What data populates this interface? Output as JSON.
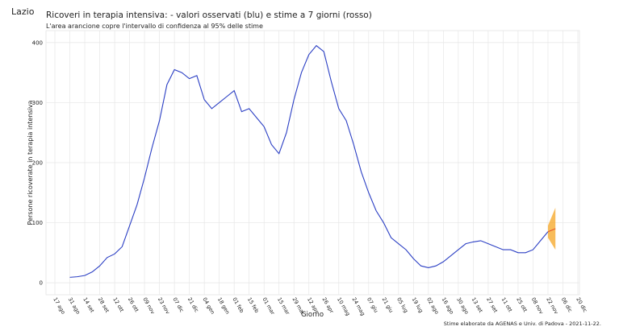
{
  "page_title": "Lazio",
  "chart_data": {
    "type": "line",
    "title": "Ricoveri in terapia intensiva: - valori osservati (blu) e stime a 7 giorni (rosso)",
    "subtitle": "L'area arancione copre l'intervallo di confidenza al 95% delle stime",
    "x_label": "Giorno",
    "y_label": "Persone ricoverate in terapia intensiva",
    "caption": "Stime elaborate da AGENAS e Univ. di Padova - 2021-11-22.",
    "x": [
      "17 ago",
      "24 ago",
      "31 ago",
      "07 set",
      "14 set",
      "21 set",
      "28 set",
      "05 ott",
      "12 ott",
      "19 ott",
      "26 ott",
      "02 nov",
      "09 nov",
      "16 nov",
      "23 nov",
      "30 nov",
      "07 dic",
      "14 dic",
      "21 dic",
      "28 dic",
      "04 gen",
      "11 gen",
      "18 gen",
      "25 gen",
      "01 feb",
      "08 feb",
      "15 feb",
      "22 feb",
      "01 mar",
      "08 mar",
      "15 mar",
      "22 mar",
      "29 mar",
      "05 apr",
      "12 apr",
      "19 apr",
      "26 apr",
      "03 mag",
      "10 mag",
      "17 mag",
      "24 mag",
      "31 mag",
      "07 giu",
      "14 giu",
      "21 giu",
      "28 giu",
      "05 lug",
      "12 lug",
      "19 lug",
      "26 lug",
      "02 ago",
      "09 ago",
      "16 ago",
      "23 ago",
      "30 ago",
      "06 set",
      "13 set",
      "20 set",
      "27 set",
      "04 ott",
      "11 ott",
      "18 ott",
      "25 ott",
      "01 nov",
      "08 nov",
      "15 nov",
      "22 nov",
      "29 nov",
      "06 dic",
      "13 dic",
      "20 dic"
    ],
    "xticks": [
      "17 ago",
      "31 ago",
      "14 set",
      "28 set",
      "12 ott",
      "26 ott",
      "09 nov",
      "23 nov",
      "07 dic",
      "21 dic",
      "04 gen",
      "18 gen",
      "01 feb",
      "15 feb",
      "01 mar",
      "15 mar",
      "29 mar",
      "12 apr",
      "26 apr",
      "10 mag",
      "24 mag",
      "07 giu",
      "21 giu",
      "05 lug",
      "19 lug",
      "02 ago",
      "16 ago",
      "30 ago",
      "13 set",
      "27 set",
      "11 ott",
      "25 ott",
      "08 nov",
      "22 nov",
      "06 dic",
      "20 dic"
    ],
    "series": [
      {
        "color": "#2b3fc4",
        "values": [
          null,
          null,
          9,
          10,
          12,
          18,
          28,
          42,
          48,
          60,
          95,
          130,
          175,
          225,
          270,
          330,
          355,
          350,
          340,
          345,
          305,
          290,
          300,
          310,
          320,
          285,
          290,
          275,
          260,
          230,
          215,
          250,
          305,
          350,
          380,
          395,
          385,
          335,
          290,
          270,
          230,
          185,
          150,
          120,
          100,
          75,
          65,
          55,
          40,
          28,
          25,
          28,
          35,
          45,
          55,
          65,
          68,
          70,
          65,
          60,
          55,
          55,
          50,
          50,
          55,
          70,
          85,
          null,
          null,
          null,
          null
        ]
      },
      {
        "color": "#e8562a",
        "values": [
          null,
          null,
          null,
          null,
          null,
          null,
          null,
          null,
          null,
          null,
          null,
          null,
          null,
          null,
          null,
          null,
          null,
          null,
          null,
          null,
          null,
          null,
          null,
          null,
          null,
          null,
          null,
          null,
          null,
          null,
          null,
          null,
          null,
          null,
          null,
          null,
          null,
          null,
          null,
          null,
          null,
          null,
          null,
          null,
          null,
          null,
          null,
          null,
          null,
          null,
          null,
          null,
          null,
          null,
          null,
          null,
          null,
          null,
          null,
          null,
          null,
          null,
          null,
          null,
          null,
          null,
          85,
          90,
          null,
          null,
          null
        ]
      }
    ],
    "band": {
      "color": "#f5a623",
      "lower": [
        null,
        null,
        null,
        null,
        null,
        null,
        null,
        null,
        null,
        null,
        null,
        null,
        null,
        null,
        null,
        null,
        null,
        null,
        null,
        null,
        null,
        null,
        null,
        null,
        null,
        null,
        null,
        null,
        null,
        null,
        null,
        null,
        null,
        null,
        null,
        null,
        null,
        null,
        null,
        null,
        null,
        null,
        null,
        null,
        null,
        null,
        null,
        null,
        null,
        null,
        null,
        null,
        null,
        null,
        null,
        null,
        null,
        null,
        null,
        null,
        null,
        null,
        null,
        null,
        null,
        null,
        75,
        55,
        null,
        null,
        null
      ],
      "upper": [
        null,
        null,
        null,
        null,
        null,
        null,
        null,
        null,
        null,
        null,
        null,
        null,
        null,
        null,
        null,
        null,
        null,
        null,
        null,
        null,
        null,
        null,
        null,
        null,
        null,
        null,
        null,
        null,
        null,
        null,
        null,
        null,
        null,
        null,
        null,
        null,
        null,
        null,
        null,
        null,
        null,
        null,
        null,
        null,
        null,
        null,
        null,
        null,
        null,
        null,
        null,
        null,
        null,
        null,
        null,
        null,
        null,
        null,
        null,
        null,
        null,
        null,
        null,
        null,
        null,
        null,
        95,
        125,
        null,
        null,
        null
      ]
    },
    "ylim": [
      -20,
      420
    ],
    "yticks": [
      0,
      100,
      200,
      300,
      400
    ],
    "grid": true
  }
}
